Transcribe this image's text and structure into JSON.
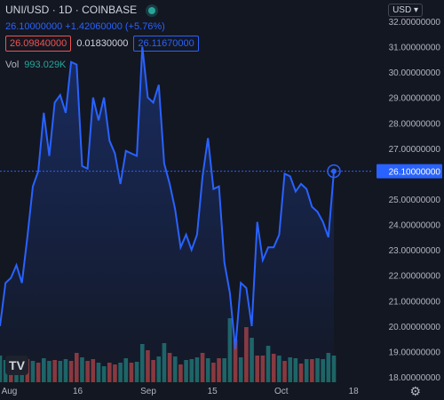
{
  "header": {
    "symbol": "UNI/USD",
    "interval": "1D",
    "exchange": "COINBASE",
    "status_color": "#26a69a"
  },
  "quote": {
    "last": "26.10000000",
    "change": "+1.42060000 (+5.76%)",
    "bid": "26.09840000",
    "spread": "0.01830000",
    "ask": "26.11670000"
  },
  "volume": {
    "label": "Vol",
    "value": "993.029K"
  },
  "currency_button": "USD",
  "price_label": "26.10000000",
  "colors": {
    "background": "#131722",
    "line": "#2962ff",
    "up": "#26a69a",
    "down": "#ef5350"
  },
  "chart_data": {
    "type": "area",
    "x_tick_labels": [
      "Aug",
      "16",
      "Sep",
      "15",
      "Oct",
      "18"
    ],
    "y_tick_labels": [
      "32.00000000",
      "31.00000000",
      "30.00000000",
      "29.00000000",
      "28.00000000",
      "27.00000000",
      "26.00000000",
      "25.00000000",
      "24.00000000",
      "23.00000000",
      "22.00000000",
      "21.00000000",
      "20.00000000",
      "19.00000000",
      "18.00000000"
    ],
    "ylim": [
      18,
      32
    ],
    "last_price": 26.1,
    "series": [
      {
        "values": [
          20.0,
          21.7,
          21.9,
          22.4,
          21.7,
          23.5,
          25.5,
          26.1,
          28.4,
          26.7,
          28.8,
          29.1,
          28.4,
          30.4,
          30.3,
          26.3,
          26.2,
          29.0,
          28.1,
          29.0,
          27.3,
          26.8,
          25.6,
          26.9,
          26.8,
          26.7,
          31.0,
          29.0,
          28.8,
          29.5,
          26.4,
          25.6,
          24.6,
          23.1,
          23.6,
          23.0,
          23.6,
          25.9,
          27.4,
          25.4,
          25.5,
          22.5,
          21.3,
          19.1,
          21.7,
          21.5,
          20.0,
          24.1,
          22.6,
          23.1,
          23.1,
          23.6,
          26.0,
          25.9,
          25.3,
          25.6,
          25.4,
          24.7,
          24.5,
          24.1,
          23.5,
          26.1
        ]
      }
    ],
    "volume_bars": [
      {
        "v": 0.3,
        "up": true
      },
      {
        "v": 0.25,
        "up": true
      },
      {
        "v": 0.28,
        "up": false
      },
      {
        "v": 0.22,
        "up": true
      },
      {
        "v": 0.3,
        "up": true
      },
      {
        "v": 0.26,
        "up": false
      },
      {
        "v": 0.24,
        "up": true
      },
      {
        "v": 0.22,
        "up": false
      },
      {
        "v": 0.27,
        "up": true
      },
      {
        "v": 0.24,
        "up": true
      },
      {
        "v": 0.25,
        "up": false
      },
      {
        "v": 0.24,
        "up": true
      },
      {
        "v": 0.26,
        "up": true
      },
      {
        "v": 0.24,
        "up": false
      },
      {
        "v": 0.33,
        "up": false
      },
      {
        "v": 0.28,
        "up": true
      },
      {
        "v": 0.24,
        "up": false
      },
      {
        "v": 0.26,
        "up": false
      },
      {
        "v": 0.22,
        "up": true
      },
      {
        "v": 0.18,
        "up": true
      },
      {
        "v": 0.22,
        "up": false
      },
      {
        "v": 0.2,
        "up": false
      },
      {
        "v": 0.22,
        "up": true
      },
      {
        "v": 0.27,
        "up": true
      },
      {
        "v": 0.22,
        "up": false
      },
      {
        "v": 0.23,
        "up": true
      },
      {
        "v": 0.43,
        "up": true
      },
      {
        "v": 0.36,
        "up": false
      },
      {
        "v": 0.25,
        "up": false
      },
      {
        "v": 0.29,
        "up": true
      },
      {
        "v": 0.44,
        "up": true
      },
      {
        "v": 0.33,
        "up": false
      },
      {
        "v": 0.29,
        "up": true
      },
      {
        "v": 0.2,
        "up": false
      },
      {
        "v": 0.25,
        "up": true
      },
      {
        "v": 0.26,
        "up": true
      },
      {
        "v": 0.28,
        "up": true
      },
      {
        "v": 0.33,
        "up": false
      },
      {
        "v": 0.27,
        "up": true
      },
      {
        "v": 0.22,
        "up": false
      },
      {
        "v": 0.27,
        "up": false
      },
      {
        "v": 0.27,
        "up": true
      },
      {
        "v": 0.72,
        "up": true
      },
      {
        "v": 0.48,
        "up": false
      },
      {
        "v": 0.28,
        "up": true
      },
      {
        "v": 0.62,
        "up": false
      },
      {
        "v": 0.5,
        "up": true
      },
      {
        "v": 0.3,
        "up": false
      },
      {
        "v": 0.3,
        "up": false
      },
      {
        "v": 0.41,
        "up": true
      },
      {
        "v": 0.32,
        "up": false
      },
      {
        "v": 0.3,
        "up": true
      },
      {
        "v": 0.24,
        "up": false
      },
      {
        "v": 0.28,
        "up": true
      },
      {
        "v": 0.27,
        "up": true
      },
      {
        "v": 0.21,
        "up": false
      },
      {
        "v": 0.26,
        "up": true
      },
      {
        "v": 0.26,
        "up": false
      },
      {
        "v": 0.27,
        "up": true
      },
      {
        "v": 0.26,
        "up": true
      },
      {
        "v": 0.33,
        "up": true
      },
      {
        "v": 0.3,
        "up": true
      }
    ],
    "grid": false,
    "legend": "none"
  }
}
